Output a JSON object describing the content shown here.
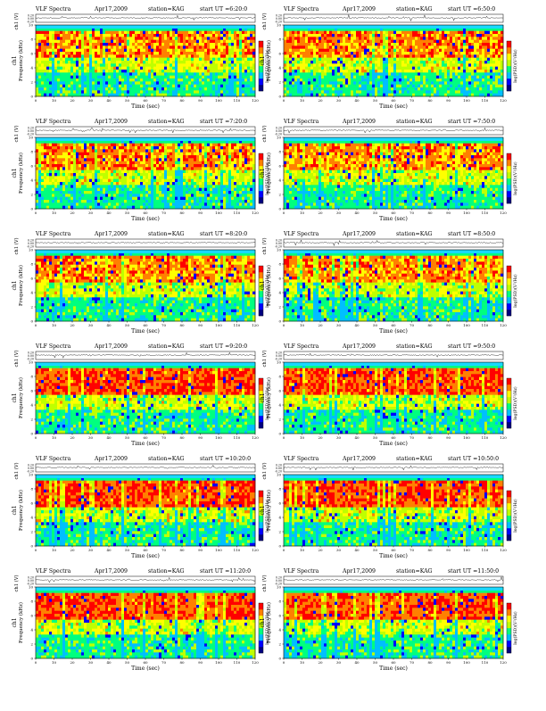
{
  "page": {
    "colorbar_label": "log(PSD)(V²/Hz)",
    "panel_common": {
      "title_left": "VLF Spectra",
      "title_date": "Apr17,2009",
      "title_station": "station=KAG",
      "start_label": "start UT ="
    }
  },
  "chart_data": [
    {
      "type": "heatmap",
      "id": "p1",
      "title": "VLF Spectra  Apr17,2009  station=KAG  start UT =6:20:0",
      "start_ut": "6:20:0",
      "xlabel": "Time (sec)",
      "ylabel": "ch1 Frequency (kHz)",
      "ts_label": "ch1 (V)",
      "ts_ticks": [
        "0.20",
        "0.00",
        "-0.20"
      ],
      "xlim": [
        0,
        120
      ],
      "ylim": [
        0,
        10
      ],
      "x_ticks": [
        0,
        10,
        20,
        30,
        40,
        50,
        60,
        70,
        80,
        90,
        100,
        110,
        120
      ],
      "y_ticks": [
        0,
        2,
        4,
        6,
        8,
        10
      ],
      "colorscale": [
        "#00007f",
        "#0000ff",
        "#00bfff",
        "#00ff7f",
        "#bfff00",
        "#ffff00",
        "#ff8000",
        "#ff0000"
      ]
    },
    {
      "type": "heatmap",
      "id": "p2",
      "title": "VLF Spectra  Apr17,2009  station=KAG  start UT =6:50:0",
      "start_ut": "6:50:0",
      "xlabel": "Time (sec)",
      "ylabel": "ch1 Frequency (kHz)",
      "ts_label": "ch1 (V)",
      "ts_ticks": [
        "0.20",
        "0.00",
        "-0.20"
      ],
      "xlim": [
        0,
        120
      ],
      "ylim": [
        0,
        10
      ],
      "x_ticks": [
        0,
        10,
        20,
        30,
        40,
        50,
        60,
        70,
        80,
        90,
        100,
        110,
        120
      ],
      "y_ticks": [
        0,
        2,
        4,
        6,
        8,
        10
      ]
    },
    {
      "type": "heatmap",
      "id": "p3",
      "title": "VLF Spectra  Apr17,2009  station=KAG  start UT =7:20:0",
      "start_ut": "7:20:0",
      "xlabel": "Time (sec)",
      "ylabel": "ch1 Frequency (kHz)",
      "ts_label": "ch1 (V)",
      "ts_ticks": [
        "0.20",
        "0.00",
        "-0.20"
      ],
      "xlim": [
        0,
        120
      ],
      "ylim": [
        0,
        10
      ],
      "x_ticks": [
        0,
        10,
        20,
        30,
        40,
        50,
        60,
        70,
        80,
        90,
        100,
        110,
        120
      ],
      "y_ticks": [
        0,
        2,
        4,
        6,
        8,
        10
      ]
    },
    {
      "type": "heatmap",
      "id": "p4",
      "title": "VLF Spectra  Apr17,2009  station=KAG  start UT =7:50:0",
      "start_ut": "7:50:0",
      "xlabel": "Time (sec)",
      "ylabel": "ch1 Frequency (kHz)",
      "ts_label": "ch1 (V)",
      "ts_ticks": [
        "0.20",
        "0.00",
        "-0.20"
      ],
      "xlim": [
        0,
        120
      ],
      "ylim": [
        0,
        10
      ],
      "x_ticks": [
        0,
        10,
        20,
        30,
        40,
        50,
        60,
        70,
        80,
        90,
        100,
        110,
        120
      ],
      "y_ticks": [
        0,
        2,
        4,
        6,
        8,
        10
      ]
    },
    {
      "type": "heatmap",
      "id": "p5",
      "title": "VLF Spectra  Apr17,2009  station=KAG  start UT =8:20:0",
      "start_ut": "8:20:0",
      "xlabel": "Time (sec)",
      "ylabel": "ch1 Frequency (kHz)",
      "ts_label": "ch1 (V)",
      "ts_ticks": [
        "0.20",
        "0.00",
        "-0.20"
      ],
      "xlim": [
        0,
        120
      ],
      "ylim": [
        0,
        10
      ],
      "x_ticks": [
        0,
        10,
        20,
        30,
        40,
        50,
        60,
        70,
        80,
        90,
        100,
        110,
        120
      ],
      "y_ticks": [
        0,
        2,
        4,
        6,
        8,
        10
      ]
    },
    {
      "type": "heatmap",
      "id": "p6",
      "title": "VLF Spectra  Apr17,2009  station=KAG  start UT =8:50:0",
      "start_ut": "8:50:0",
      "xlabel": "Time (sec)",
      "ylabel": "ch1 Frequency (kHz)",
      "ts_label": "ch1 (V)",
      "ts_ticks": [
        "0.20",
        "0.00",
        "-0.20"
      ],
      "xlim": [
        0,
        120
      ],
      "ylim": [
        0,
        10
      ],
      "x_ticks": [
        0,
        10,
        20,
        30,
        40,
        50,
        60,
        70,
        80,
        90,
        100,
        110,
        120
      ],
      "y_ticks": [
        0,
        2,
        4,
        6,
        8,
        10
      ]
    },
    {
      "type": "heatmap",
      "id": "p7",
      "title": "VLF Spectra  Apr17,2009  station=KAG  start UT =9:20:0",
      "start_ut": "9:20:0",
      "xlabel": "Time (sec)",
      "ylabel": "ch1 Frequency (kHz)",
      "ts_label": "ch1 (V)",
      "ts_ticks": [
        "0.20",
        "0.00",
        "-0.20"
      ],
      "xlim": [
        0,
        120
      ],
      "ylim": [
        0,
        10
      ],
      "x_ticks": [
        0,
        10,
        20,
        30,
        40,
        50,
        60,
        70,
        80,
        90,
        100,
        110,
        120
      ],
      "y_ticks": [
        0,
        2,
        4,
        6,
        8,
        10
      ]
    },
    {
      "type": "heatmap",
      "id": "p8",
      "title": "VLF Spectra  Apr17,2009  station=KAG  start UT =9:50:0",
      "start_ut": "9:50:0",
      "xlabel": "Time (sec)",
      "ylabel": "ch1 Frequency (kHz)",
      "ts_label": "ch1 (V)",
      "ts_ticks": [
        "0.20",
        "0.00",
        "-0.20"
      ],
      "xlim": [
        0,
        120
      ],
      "ylim": [
        0,
        10
      ],
      "x_ticks": [
        0,
        10,
        20,
        30,
        40,
        50,
        60,
        70,
        80,
        90,
        100,
        110,
        120
      ],
      "y_ticks": [
        0,
        2,
        4,
        6,
        8,
        10
      ]
    },
    {
      "type": "heatmap",
      "id": "p9",
      "title": "VLF Spectra  Apr17,2009  station=KAG  start UT =10:20:0",
      "start_ut": "10:20:0",
      "xlabel": "Time (sec)",
      "ylabel": "ch1 Frequency (kHz)",
      "ts_label": "ch1 (V)",
      "ts_ticks": [
        "0.20",
        "0.00",
        "-0.20"
      ],
      "xlim": [
        0,
        120
      ],
      "ylim": [
        0,
        10
      ],
      "x_ticks": [
        0,
        10,
        20,
        30,
        40,
        50,
        60,
        70,
        80,
        90,
        100,
        110,
        120
      ],
      "y_ticks": [
        0,
        2,
        4,
        6,
        8,
        10
      ]
    },
    {
      "type": "heatmap",
      "id": "p10",
      "title": "VLF Spectra  Apr17,2009  station=KAG  start UT =10:50:0",
      "start_ut": "10:50:0",
      "xlabel": "Time (sec)",
      "ylabel": "ch1 Frequency (kHz)",
      "ts_label": "ch1 (V)",
      "ts_ticks": [
        "0.20",
        "0.00",
        "-0.20"
      ],
      "xlim": [
        0,
        120
      ],
      "ylim": [
        0,
        10
      ],
      "x_ticks": [
        0,
        10,
        20,
        30,
        40,
        50,
        60,
        70,
        80,
        90,
        100,
        110,
        120
      ],
      "y_ticks": [
        0,
        2,
        4,
        6,
        8,
        10
      ]
    },
    {
      "type": "heatmap",
      "id": "p11",
      "title": "VLF Spectra  Apr17,2009  station=KAG  start UT =11:20:0",
      "start_ut": "11:20:0",
      "xlabel": "Time (sec)",
      "ylabel": "ch1 Frequency (kHz)",
      "ts_label": "ch1 (V)",
      "ts_ticks": [
        "0.20",
        "0.00",
        "-0.20"
      ],
      "xlim": [
        0,
        120
      ],
      "ylim": [
        0,
        10
      ],
      "x_ticks": [
        0,
        10,
        20,
        30,
        40,
        50,
        60,
        70,
        80,
        90,
        100,
        110,
        120
      ],
      "y_ticks": [
        0,
        2,
        4,
        6,
        8,
        10
      ]
    },
    {
      "type": "heatmap",
      "id": "p12",
      "title": "VLF Spectra  Apr17,2009  station=KAG  start UT =11:50:0",
      "start_ut": "11:50:0",
      "xlabel": "Time (sec)",
      "ylabel": "ch1 Frequency (kHz)",
      "ts_label": "ch1 (V)",
      "ts_ticks": [
        "0.20",
        "0.00",
        "-0.20"
      ],
      "xlim": [
        0,
        120
      ],
      "ylim": [
        0,
        10
      ],
      "x_ticks": [
        0,
        10,
        20,
        30,
        40,
        50,
        60,
        70,
        80,
        90,
        100,
        110,
        120
      ],
      "y_ticks": [
        0,
        2,
        4,
        6,
        8,
        10
      ]
    }
  ]
}
